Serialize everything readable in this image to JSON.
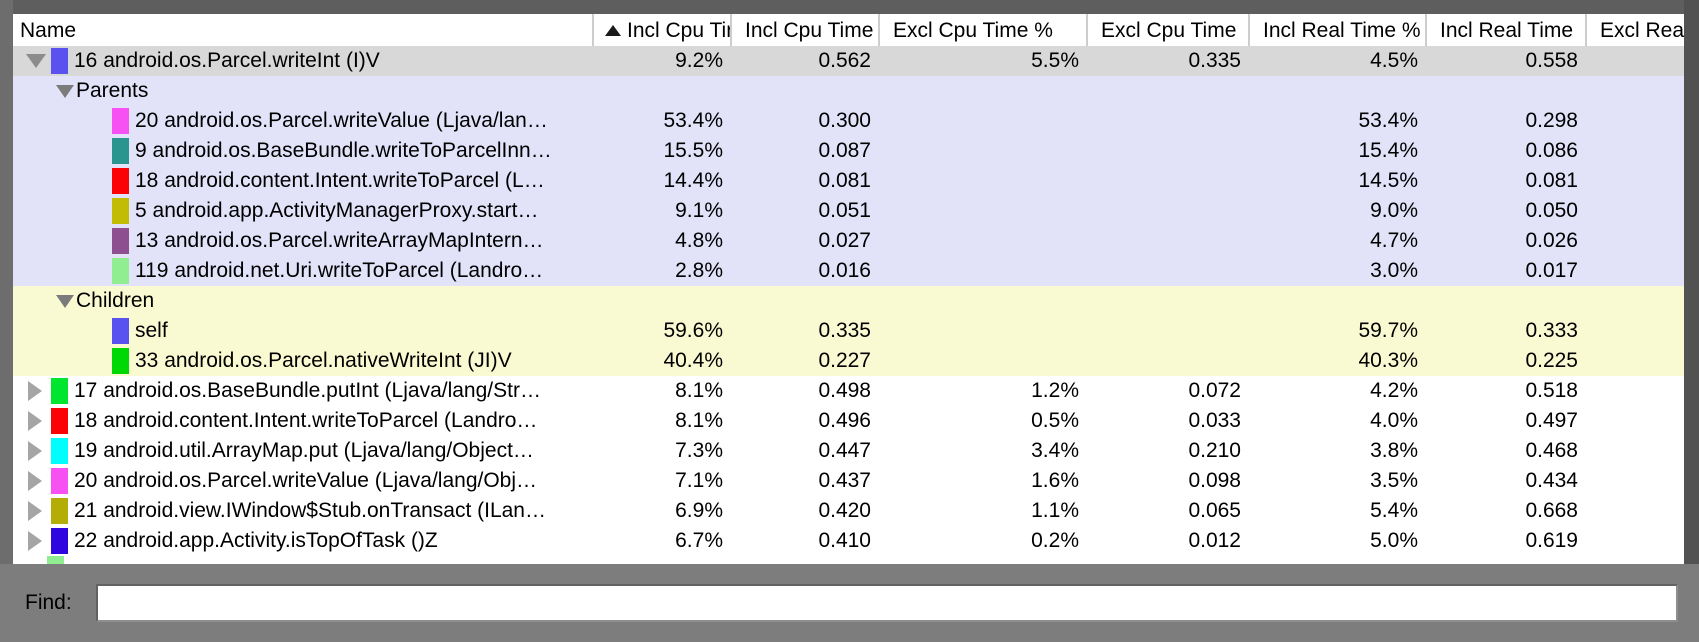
{
  "header": {
    "columns": [
      {
        "label": "Name"
      },
      {
        "label": "Incl Cpu Tir"
      },
      {
        "label": "Incl Cpu Time"
      },
      {
        "label": "Excl Cpu Time %"
      },
      {
        "label": "Excl Cpu Time"
      },
      {
        "label": "Incl Real Time %"
      },
      {
        "label": "Incl Real Time"
      },
      {
        "label": "Excl Real"
      }
    ],
    "sorted_column": "Incl Cpu Tir",
    "sort_direction": "ascending"
  },
  "rows": [
    {
      "type": "expanded",
      "bg": "selected",
      "swatch": "#5a52f0",
      "name": "16 android.os.Parcel.writeInt (I)V",
      "values": [
        "9.2%",
        "0.562",
        "5.5%",
        "0.335",
        "4.5%",
        "0.558"
      ]
    },
    {
      "type": "section",
      "bg": "lavender",
      "swatch": "",
      "name": "Parents",
      "values": [
        "",
        "",
        "",
        "",
        "",
        ""
      ]
    },
    {
      "type": "sub",
      "bg": "lavender",
      "swatch": "#f751f3",
      "name": "20 android.os.Parcel.writeValue (Ljava/lan…",
      "values": [
        "53.4%",
        "0.300",
        "",
        "",
        "53.4%",
        "0.298"
      ]
    },
    {
      "type": "sub",
      "bg": "lavender",
      "swatch": "#2a948e",
      "name": "9 android.os.BaseBundle.writeToParcelInn…",
      "values": [
        "15.5%",
        "0.087",
        "",
        "",
        "15.4%",
        "0.086"
      ]
    },
    {
      "type": "sub",
      "bg": "lavender",
      "swatch": "#fb0207",
      "name": "18 android.content.Intent.writeToParcel (L…",
      "values": [
        "14.4%",
        "0.081",
        "",
        "",
        "14.5%",
        "0.081"
      ]
    },
    {
      "type": "sub",
      "bg": "lavender",
      "swatch": "#c3bc04",
      "name": "5 android.app.ActivityManagerProxy.start…",
      "values": [
        "9.1%",
        "0.051",
        "",
        "",
        "9.0%",
        "0.050"
      ]
    },
    {
      "type": "sub",
      "bg": "lavender",
      "swatch": "#8e4f90",
      "name": "13 android.os.Parcel.writeArrayMapIntern…",
      "values": [
        "4.8%",
        "0.027",
        "",
        "",
        "4.7%",
        "0.026"
      ]
    },
    {
      "type": "sub",
      "bg": "lavender",
      "swatch": "#90ee90",
      "name": "119 android.net.Uri.writeToParcel (Landro…",
      "values": [
        "2.8%",
        "0.016",
        "",
        "",
        "3.0%",
        "0.017"
      ]
    },
    {
      "type": "section",
      "bg": "yellow",
      "swatch": "",
      "name": "Children",
      "values": [
        "",
        "",
        "",
        "",
        "",
        ""
      ]
    },
    {
      "type": "sub",
      "bg": "yellow",
      "swatch": "#5a52f0",
      "name": "self",
      "values": [
        "59.6%",
        "0.335",
        "",
        "",
        "59.7%",
        "0.333"
      ]
    },
    {
      "type": "sub",
      "bg": "yellow",
      "swatch": "#00d805",
      "name": "33 android.os.Parcel.nativeWriteInt (JI)V",
      "values": [
        "40.4%",
        "0.227",
        "",
        "",
        "40.3%",
        "0.225"
      ]
    },
    {
      "type": "collapsed",
      "bg": "white",
      "swatch": "#00e62e",
      "name": "17 android.os.BaseBundle.putInt (Ljava/lang/Str…",
      "values": [
        "8.1%",
        "0.498",
        "1.2%",
        "0.072",
        "4.2%",
        "0.518"
      ]
    },
    {
      "type": "collapsed",
      "bg": "white",
      "swatch": "#fb0207",
      "name": "18 android.content.Intent.writeToParcel (Landro…",
      "values": [
        "8.1%",
        "0.496",
        "0.5%",
        "0.033",
        "4.0%",
        "0.497"
      ]
    },
    {
      "type": "collapsed",
      "bg": "white",
      "swatch": "#00feff",
      "name": "19 android.util.ArrayMap.put (Ljava/lang/Object…",
      "values": [
        "7.3%",
        "0.447",
        "3.4%",
        "0.210",
        "3.8%",
        "0.468"
      ]
    },
    {
      "type": "collapsed",
      "bg": "white",
      "swatch": "#f751f3",
      "name": "20 android.os.Parcel.writeValue (Ljava/lang/Obj…",
      "values": [
        "7.1%",
        "0.437",
        "1.6%",
        "0.098",
        "3.5%",
        "0.434"
      ]
    },
    {
      "type": "collapsed",
      "bg": "white",
      "swatch": "#b3ad06",
      "name": "21 android.view.IWindow$Stub.onTransact (ILan…",
      "values": [
        "6.9%",
        "0.420",
        "1.1%",
        "0.065",
        "5.4%",
        "0.668"
      ]
    },
    {
      "type": "collapsed",
      "bg": "white",
      "swatch": "#2f06dd",
      "name": "22 android.app.Activity.isTopOfTask ()Z",
      "values": [
        "6.7%",
        "0.410",
        "0.2%",
        "0.012",
        "5.0%",
        "0.619"
      ]
    },
    {
      "type": "sliver",
      "bg": "white",
      "swatch": "#90ee90",
      "name": "",
      "values": [
        "",
        "",
        "",
        "",
        "",
        ""
      ]
    }
  ],
  "find": {
    "label": "Find:",
    "value": ""
  },
  "colors": {
    "row_selected_bg": "#d8d8d8",
    "parents_section_bg": "#e2e2f9",
    "children_section_bg": "#fafad2",
    "frame_grey": "#7d7d7d"
  }
}
